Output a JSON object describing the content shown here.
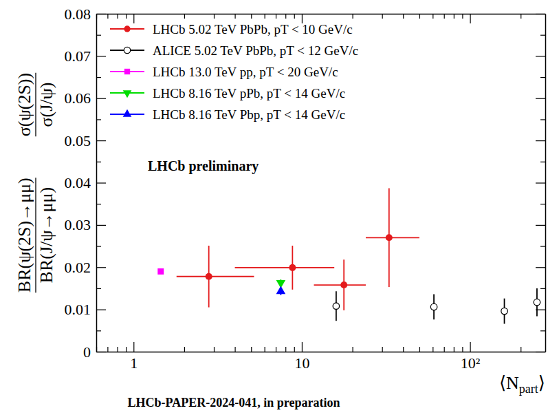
{
  "chart_data": {
    "type": "scatter",
    "log": "x",
    "legend": "upper left",
    "xlabel": [
      "⟨N",
      "part",
      "⟩"
    ],
    "ylabel": [
      {
        "numerator": "BR(ψ(2S)→μμ)",
        "denominator": "BR(J/ψ→μμ)"
      },
      {
        "numerator": "σ(ψ(2S))",
        "denominator": "σ(J/ψ)"
      }
    ],
    "annotation": "LHCb preliminary",
    "footer": "LHCb-PAPER-2024-041, in preparation",
    "xlim": [
      0.6,
      280
    ],
    "xticks": [
      1,
      10,
      {
        "value": 100,
        "label": "10²"
      }
    ],
    "xminorticks": [
      0.6,
      0.7,
      0.8,
      0.9,
      2,
      3,
      4,
      5,
      6,
      7,
      8,
      9,
      20,
      30,
      40,
      50,
      60,
      70,
      80,
      90,
      200
    ],
    "ylim": [
      0,
      0.08
    ],
    "yticks": [
      0,
      0.01,
      0.02,
      0.03,
      0.04,
      0.05,
      0.06,
      0.07,
      0.08
    ],
    "yminorticks": [
      0.005,
      0.015,
      0.025,
      0.035,
      0.045,
      0.055,
      0.065,
      0.075
    ],
    "series": [
      {
        "name": "LHCb 5.02 TeV PbPb, pT < 10 GeV/c",
        "color": "#e41a1c",
        "marker": "circle",
        "x": [
          2.8,
          8.8,
          17.8,
          33
        ],
        "values": [
          0.0178,
          0.0199,
          0.0158,
          0.027
        ],
        "yerr": [
          0.0073,
          0.0052,
          0.006,
          0.0117
        ],
        "x_err_minus": [
          1.0,
          4.8,
          6.0,
          9.0
        ],
        "x_err_plus": [
          2.4,
          6.8,
          6.2,
          17.0
        ]
      },
      {
        "name": "ALICE 5.02 TeV PbPb, pT < 12 GeV/c",
        "color": "#000000",
        "marker": "open-circle",
        "x": [
          16,
          61,
          160,
          250
        ],
        "values": [
          0.0108,
          0.0106,
          0.0096,
          0.0117
        ],
        "yerr": [
          0.0035,
          0.003,
          0.003,
          0.0033
        ]
      },
      {
        "name": "LHCb 13.0 TeV pp, pT < 20 GeV/c",
        "color": "#ff00ff",
        "marker": "square",
        "x": [
          1.45
        ],
        "values": [
          0.019
        ],
        "yerr": [
          0.0004
        ]
      },
      {
        "name": "LHCb 8.16 TeV pPb, pT < 14 GeV/c",
        "color": "#00dd00",
        "marker": "triangle-down",
        "x": [
          7.5
        ],
        "values": [
          0.0163
        ],
        "yerr": [
          0.0008
        ]
      },
      {
        "name": "LHCb 8.16 TeV Pbp, pT < 14 GeV/c",
        "color": "#0000ff",
        "marker": "triangle",
        "x": [
          7.5
        ],
        "values": [
          0.0143
        ],
        "yerr": [
          0.0009
        ]
      }
    ]
  }
}
